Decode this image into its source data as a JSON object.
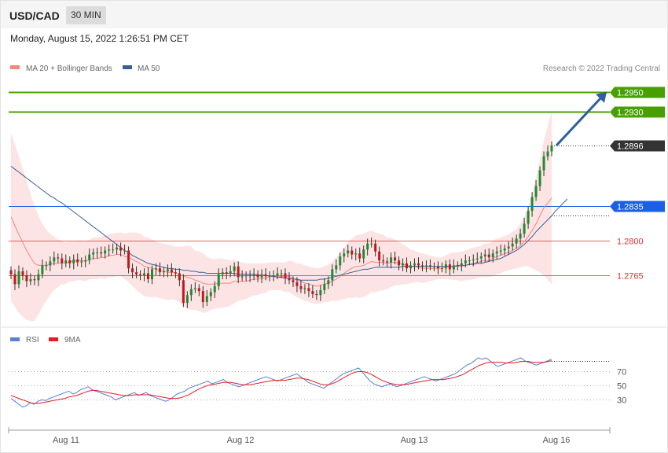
{
  "header": {
    "symbol": "USD/CAD",
    "interval": "30 MIN",
    "datetime": "Monday, August 15, 2022 1:26:51 PM CET"
  },
  "price_panel": {
    "legend": [
      {
        "label": "MA 20 + Bollinger Bands",
        "color": "#f4867c"
      },
      {
        "label": "MA 50",
        "color": "#3a5f99"
      }
    ],
    "credit": "Research © 2022 Trading Central"
  },
  "rsi_panel": {
    "legend": [
      {
        "label": "RSI",
        "color": "#5b7fd8"
      },
      {
        "label": "9MA",
        "color": "#e02020"
      }
    ]
  },
  "x_labels": [
    "Aug 11",
    "Aug 12",
    "Aug 13",
    "Aug 16"
  ],
  "chart_data": [
    {
      "type": "candlestick",
      "ylim": [
        1.2715,
        1.2965
      ],
      "levels": [
        {
          "label": "1.2950",
          "value": 1.295,
          "color": "#48a000",
          "kind": "target"
        },
        {
          "label": "1.2930",
          "value": 1.293,
          "color": "#48a000",
          "kind": "target"
        },
        {
          "label": "1.2896",
          "value": 1.2896,
          "color": "#333333",
          "kind": "current"
        },
        {
          "label": "1.2835",
          "value": 1.2835,
          "color": "#1a5fe6",
          "kind": "pivot"
        },
        {
          "label": "1.2800",
          "value": 1.28,
          "color": "#e03030",
          "kind": "support"
        },
        {
          "label": "1.2765",
          "value": 1.2765,
          "color": "#e03030",
          "kind": "support"
        }
      ],
      "closes": [
        1.2766,
        1.2756,
        1.2769,
        1.2765,
        1.2759,
        1.2761,
        1.276,
        1.2766,
        1.2775,
        1.2775,
        1.2779,
        1.2783,
        1.2782,
        1.2777,
        1.278,
        1.2777,
        1.2781,
        1.2778,
        1.2779,
        1.278,
        1.2786,
        1.2788,
        1.2788,
        1.2787,
        1.279,
        1.2791,
        1.2791,
        1.2793,
        1.279,
        1.279,
        1.2772,
        1.2768,
        1.2766,
        1.2765,
        1.2767,
        1.2761,
        1.2771,
        1.2772,
        1.2768,
        1.2769,
        1.2771,
        1.2768,
        1.2767,
        1.276,
        1.2737,
        1.2745,
        1.2751,
        1.2752,
        1.2749,
        1.2738,
        1.2744,
        1.2748,
        1.2754,
        1.2766,
        1.2768,
        1.2767,
        1.2769,
        1.2774,
        1.2763,
        1.2764,
        1.2765,
        1.2764,
        1.2766,
        1.2763,
        1.2766,
        1.2764,
        1.2765,
        1.2765,
        1.2767,
        1.2767,
        1.2762,
        1.276,
        1.2758,
        1.2754,
        1.2751,
        1.2752,
        1.2749,
        1.2746,
        1.2745,
        1.275,
        1.2756,
        1.276,
        1.2771,
        1.2775,
        1.2784,
        1.2787,
        1.279,
        1.2786,
        1.2787,
        1.2782,
        1.2791,
        1.2797,
        1.2797,
        1.2789,
        1.278,
        1.2779,
        1.2778,
        1.2783,
        1.278,
        1.2775,
        1.2777,
        1.2772,
        1.2775,
        1.2777,
        1.2775,
        1.2774,
        1.2775,
        1.2774,
        1.2774,
        1.2772,
        1.2772,
        1.2776,
        1.2771,
        1.2775,
        1.2775,
        1.2777,
        1.278,
        1.278,
        1.2781,
        1.2782,
        1.2784,
        1.2786,
        1.2783,
        1.2787,
        1.2789,
        1.279,
        1.2792,
        1.2794,
        1.2797,
        1.2802,
        1.2807,
        1.2817,
        1.283,
        1.2844,
        1.2855,
        1.2871,
        1.2885,
        1.289,
        1.2896
      ],
      "ma20": [
        1.2824,
        1.2815,
        1.2806,
        1.2798,
        1.279,
        1.2783,
        1.2777,
        1.2775,
        1.2775,
        1.2775,
        1.2776,
        1.2777,
        1.2777,
        1.2778,
        1.2777,
        1.2779,
        1.2779,
        1.278,
        1.278,
        1.2779,
        1.2781,
        1.2782,
        1.2782,
        1.2783,
        1.2783,
        1.2785,
        1.2785,
        1.2786,
        1.2786,
        1.2784,
        1.2783,
        1.2781,
        1.2779,
        1.2777,
        1.2774,
        1.2773,
        1.2772,
        1.2771,
        1.277,
        1.2769,
        1.2768,
        1.2768,
        1.2767,
        1.2766,
        1.2764,
        1.2763,
        1.2762,
        1.276,
        1.2759,
        1.2757,
        1.2756,
        1.2756,
        1.2756,
        1.2757,
        1.2757,
        1.2757,
        1.2757,
        1.2759,
        1.2759,
        1.2759,
        1.2759,
        1.276,
        1.2761,
        1.2761,
        1.2762,
        1.2762,
        1.2764,
        1.2764,
        1.2764,
        1.2764,
        1.2763,
        1.2764,
        1.2762,
        1.276,
        1.2759,
        1.2757,
        1.2756,
        1.2755,
        1.2754,
        1.2755,
        1.2756,
        1.2757,
        1.2759,
        1.2761,
        1.2764,
        1.2767,
        1.277,
        1.2772,
        1.2774,
        1.2774,
        1.2775,
        1.2777,
        1.2779,
        1.2778,
        1.2778,
        1.2778,
        1.2777,
        1.2778,
        1.2778,
        1.2777,
        1.2776,
        1.2775,
        1.2774,
        1.2774,
        1.2773,
        1.2772,
        1.2772,
        1.2772,
        1.2772,
        1.2772,
        1.2772,
        1.2773,
        1.2774,
        1.2774,
        1.2774,
        1.2774,
        1.2775,
        1.2776,
        1.2777,
        1.2778,
        1.2779,
        1.278,
        1.278,
        1.2782,
        1.2784,
        1.2785,
        1.2787,
        1.2788,
        1.279,
        1.2792,
        1.2795,
        1.2799,
        1.2804,
        1.281,
        1.2817,
        1.2825,
        1.2833,
        1.2838,
        1.2843
      ],
      "bb_width": [
        0.0085,
        0.0082,
        0.0079,
        0.0075,
        0.007,
        0.0064,
        0.0058,
        0.005,
        0.0042,
        0.0036,
        0.0031,
        0.0027,
        0.0024,
        0.0022,
        0.0021,
        0.002,
        0.002,
        0.002,
        0.002,
        0.002,
        0.002,
        0.0021,
        0.0021,
        0.0021,
        0.0022,
        0.0022,
        0.0022,
        0.0022,
        0.0022,
        0.0023,
        0.0025,
        0.0027,
        0.0029,
        0.003,
        0.003,
        0.003,
        0.0029,
        0.0028,
        0.0028,
        0.0028,
        0.0028,
        0.0027,
        0.0027,
        0.0028,
        0.003,
        0.0032,
        0.0032,
        0.003,
        0.003,
        0.003,
        0.0028,
        0.0026,
        0.0025,
        0.0025,
        0.0025,
        0.0024,
        0.0023,
        0.0022,
        0.002,
        0.0019,
        0.0018,
        0.0017,
        0.0016,
        0.0016,
        0.0015,
        0.0015,
        0.0014,
        0.0014,
        0.0014,
        0.0014,
        0.0015,
        0.0016,
        0.0017,
        0.0017,
        0.0018,
        0.0018,
        0.0018,
        0.0018,
        0.0018,
        0.0018,
        0.0018,
        0.0019,
        0.002,
        0.0022,
        0.0024,
        0.0026,
        0.0028,
        0.003,
        0.0031,
        0.0032,
        0.0032,
        0.0032,
        0.0031,
        0.003,
        0.0029,
        0.0028,
        0.0026,
        0.0025,
        0.0023,
        0.0022,
        0.002,
        0.0019,
        0.0017,
        0.0016,
        0.0015,
        0.0015,
        0.0014,
        0.0013,
        0.0012,
        0.0011,
        0.0011,
        0.0012,
        0.0013,
        0.0014,
        0.0014,
        0.0015,
        0.0015,
        0.0016,
        0.0016,
        0.0016,
        0.0016,
        0.0017,
        0.0017,
        0.0018,
        0.0018,
        0.0018,
        0.0018,
        0.0018,
        0.0019,
        0.002,
        0.0022,
        0.0025,
        0.003,
        0.0038,
        0.0047,
        0.0057,
        0.0068,
        0.0078,
        0.0087
      ],
      "ma50": [
        1.2875,
        1.2872,
        1.2869,
        1.2866,
        1.2863,
        1.286,
        1.2857,
        1.2854,
        1.2851,
        1.2848,
        1.2845,
        1.2843,
        1.284,
        1.2838,
        1.2835,
        1.2832,
        1.2829,
        1.2826,
        1.2823,
        1.282,
        1.2817,
        1.2814,
        1.2811,
        1.2808,
        1.2805,
        1.2802,
        1.2799,
        1.2796,
        1.2793,
        1.279,
        1.2788,
        1.2785,
        1.2783,
        1.2781,
        1.2779,
        1.2777,
        1.2776,
        1.2775,
        1.2774,
        1.2773,
        1.2772,
        1.2772,
        1.2771,
        1.2771,
        1.277,
        1.277,
        1.2769,
        1.2769,
        1.2768,
        1.2768,
        1.2767,
        1.2767,
        1.2767,
        1.2767,
        1.2767,
        1.2767,
        1.2767,
        1.2767,
        1.2766,
        1.2766,
        1.2766,
        1.2766,
        1.2766,
        1.2765,
        1.2765,
        1.2765,
        1.2764,
        1.2764,
        1.2763,
        1.2763,
        1.2762,
        1.2762,
        1.2761,
        1.2761,
        1.276,
        1.276,
        1.276,
        1.276,
        1.276,
        1.2761,
        1.2761,
        1.2762,
        1.2763,
        1.2764,
        1.2765,
        1.2766,
        1.2767,
        1.2768,
        1.2769,
        1.277,
        1.2771,
        1.2771,
        1.2772,
        1.2773,
        1.2773,
        1.2773,
        1.2773,
        1.2773,
        1.2773,
        1.2773,
        1.2774,
        1.2774,
        1.2774,
        1.2774,
        1.2774,
        1.2774,
        1.2774,
        1.2774,
        1.2774,
        1.2774,
        1.2774,
        1.2774,
        1.2774,
        1.2774,
        1.2775,
        1.2775,
        1.2775,
        1.2776,
        1.2776,
        1.2777,
        1.2777,
        1.2778,
        1.2779,
        1.278,
        1.2781,
        1.2782,
        1.2784,
        1.2786,
        1.2788,
        1.279,
        1.2793,
        1.2796,
        1.28,
        1.2804,
        1.2809,
        1.2813,
        1.2817,
        1.2821,
        1.2825,
        1.283,
        1.2834,
        1.2838,
        1.2842
      ],
      "target_arrow": {
        "from": 1.2896,
        "to": 1.295
      }
    },
    {
      "type": "line",
      "title": "RSI",
      "ylim": [
        0,
        100
      ],
      "reference_lines": [
        {
          "label": "70",
          "value": 70
        },
        {
          "label": "50",
          "value": 50
        },
        {
          "label": "30",
          "value": 30
        }
      ],
      "series": [
        {
          "name": "RSI",
          "color": "#5b7fd8",
          "values": [
            32,
            28,
            24,
            20,
            22,
            26,
            24,
            28,
            30,
            29,
            32,
            34,
            36,
            38,
            40,
            42,
            38,
            40,
            44,
            46,
            48,
            44,
            42,
            40,
            38,
            36,
            34,
            30,
            32,
            34,
            36,
            38,
            40,
            36,
            38,
            40,
            36,
            34,
            32,
            30,
            28,
            30,
            34,
            38,
            40,
            42,
            46,
            48,
            50,
            52,
            54,
            56,
            52,
            54,
            56,
            58,
            54,
            52,
            50,
            48,
            50,
            52,
            54,
            56,
            58,
            60,
            62,
            60,
            58,
            56,
            58,
            60,
            62,
            64,
            66,
            62,
            58,
            54,
            52,
            50,
            48,
            46,
            50,
            54,
            58,
            62,
            66,
            68,
            70,
            72,
            74,
            68,
            62,
            56,
            52,
            50,
            48,
            50,
            52,
            50,
            48,
            50,
            52,
            54,
            56,
            58,
            60,
            62,
            60,
            58,
            56,
            58,
            60,
            62,
            64,
            66,
            70,
            74,
            78,
            80,
            84,
            88,
            86,
            88,
            84,
            80,
            76,
            78,
            80,
            82,
            84,
            86,
            88,
            84,
            82,
            80,
            78,
            80,
            82,
            84,
            86
          ]
        },
        {
          "name": "9MA",
          "color": "#e02020",
          "values": [
            36,
            34,
            32,
            30,
            28,
            26,
            25,
            25,
            26,
            27,
            28,
            29,
            30,
            31,
            32,
            34,
            35,
            36,
            38,
            40,
            42,
            43,
            43,
            42,
            41,
            40,
            39,
            38,
            37,
            36,
            36,
            36,
            37,
            37,
            37,
            37,
            37,
            36,
            35,
            34,
            33,
            32,
            32,
            32,
            33,
            35,
            37,
            40,
            43,
            46,
            48,
            50,
            51,
            52,
            53,
            54,
            54,
            54,
            53,
            52,
            51,
            51,
            51,
            52,
            53,
            54,
            55,
            56,
            57,
            57,
            57,
            57,
            58,
            59,
            60,
            60,
            59,
            58,
            56,
            54,
            52,
            51,
            51,
            52,
            54,
            57,
            60,
            63,
            66,
            68,
            69,
            69,
            68,
            66,
            63,
            60,
            57,
            55,
            53,
            52,
            51,
            51,
            51,
            52,
            53,
            54,
            55,
            56,
            57,
            58,
            58,
            58,
            58,
            59,
            60,
            61,
            63,
            65,
            68,
            71,
            74,
            77,
            79,
            81,
            82,
            82,
            82,
            82,
            81,
            81,
            81,
            82,
            83,
            83,
            83,
            82,
            82,
            82,
            82,
            83,
            84
          ]
        }
      ]
    }
  ]
}
